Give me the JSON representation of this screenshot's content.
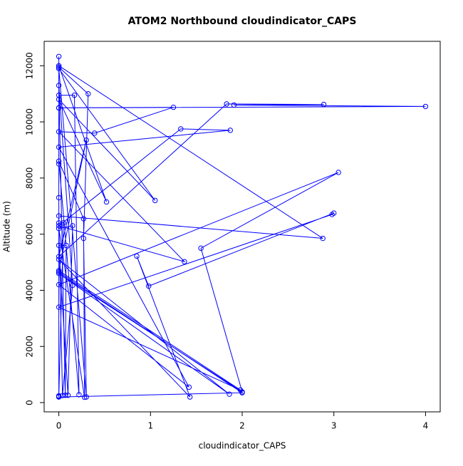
{
  "chart_data": {
    "type": "line",
    "title": "ATOM2 Northbound cloudindicator_CAPS",
    "x_label": "cloudindicator_CAPS",
    "y_label": "Altitude (m)",
    "xlim": [
      -0.16,
      4.16
    ],
    "ylim": [
      -330,
      12870
    ],
    "xticks": [
      0,
      1,
      2,
      3,
      4
    ],
    "yticks": [
      0,
      2000,
      4000,
      6000,
      8000,
      10000,
      12000
    ],
    "series": [
      {
        "name": "cloudindicator_CAPS",
        "color": "#0000ff",
        "marker": "open-circle",
        "x": [
          0,
          0,
          0,
          0.32,
          0.27,
          0.3,
          0,
          1.05,
          0,
          0.52,
          0,
          2.88,
          0,
          0,
          4.0,
          1.91,
          2.89,
          1.83,
          0,
          0.3,
          0,
          1.98,
          0,
          2.98,
          3.0,
          0.98,
          0.85,
          1.43,
          0,
          1.86,
          0,
          2.0,
          1.55,
          3.05,
          0,
          1.42,
          0,
          1.87,
          1.33,
          0,
          1.37,
          0,
          0.39,
          1.25,
          0,
          0,
          0.17,
          0.22,
          0,
          0.27,
          0.28,
          0,
          0.15,
          0.1,
          0,
          0.08,
          0.07,
          0,
          0.15,
          0.04,
          0,
          0.05,
          0,
          0,
          0,
          0,
          2.0,
          0
        ],
        "values": [
          240,
          12330,
          11950,
          11000,
          5850,
          200,
          11900,
          7200,
          10800,
          7150,
          12000,
          5850,
          6650,
          10500,
          10550,
          10600,
          10620,
          10640,
          5200,
          9350,
          4700,
          450,
          3400,
          6700,
          6750,
          4150,
          5220,
          200,
          5100,
          300,
          4600,
          380,
          5500,
          8200,
          4200,
          550,
          9100,
          9700,
          9750,
          6300,
          5020,
          9650,
          9600,
          10520,
          10500,
          10950,
          10950,
          280,
          8600,
          6550,
          190,
          6200,
          6300,
          260,
          5600,
          5600,
          260,
          11300,
          4180,
          250,
          6400,
          6400,
          220,
          7300,
          8500,
          200,
          350,
          4650
        ]
      }
    ]
  }
}
